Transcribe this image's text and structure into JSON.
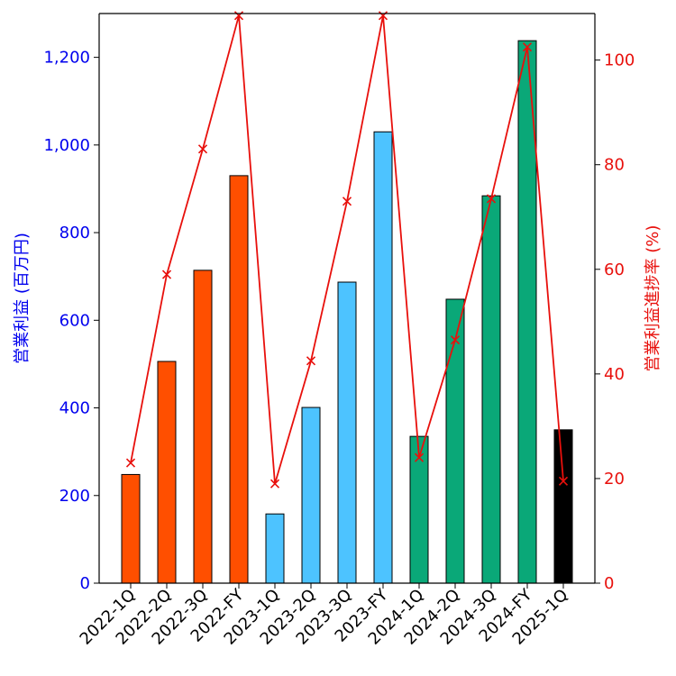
{
  "chart_data": {
    "type": "bar",
    "categories": [
      "2022-1Q",
      "2022-2Q",
      "2022-3Q",
      "2022-FY",
      "2023-1Q",
      "2023-2Q",
      "2023-3Q",
      "2023-FY",
      "2024-1Q",
      "2024-2Q",
      "2024-3Q",
      "2024-FY",
      "2025-1Q"
    ],
    "bar_colors": [
      "#ff4f00",
      "#ff4f00",
      "#ff4f00",
      "#ff4f00",
      "#4dc3ff",
      "#4dc3ff",
      "#4dc3ff",
      "#4dc3ff",
      "#0aa878",
      "#0aa878",
      "#0aa878",
      "#0aa878",
      "#000000"
    ],
    "series": [
      {
        "type": "bar",
        "axis": "left",
        "values": [
          248,
          506,
          714,
          930,
          158,
          401,
          687,
          1030,
          335,
          648,
          884,
          1238,
          350
        ]
      },
      {
        "type": "line",
        "axis": "right",
        "color": "#e8100c",
        "marker": "x",
        "values": [
          23.0,
          59.0,
          83.0,
          108.5,
          19.0,
          42.5,
          73.0,
          108.5,
          24.0,
          46.5,
          73.5,
          102.5,
          19.5
        ]
      }
    ],
    "ylabel_left": "営業利益 (百万円)",
    "ylabel_right": "営業利益進捗率 (%)",
    "ylim_left": [
      0,
      1300
    ],
    "ylim_right": [
      0,
      108.9
    ],
    "yticks_left": [
      0,
      200,
      400,
      600,
      800,
      1000,
      1200
    ],
    "yticks_left_labels": [
      "0",
      "200",
      "400",
      "600",
      "800",
      "1,000",
      "1,200"
    ],
    "yticks_right": [
      0,
      20,
      40,
      60,
      80,
      100
    ],
    "yticks_right_labels": [
      "0",
      "20",
      "40",
      "60",
      "80",
      "100"
    ],
    "left_axis_color": "#0000ee",
    "right_axis_color": "#e8100c",
    "grid": false
  }
}
